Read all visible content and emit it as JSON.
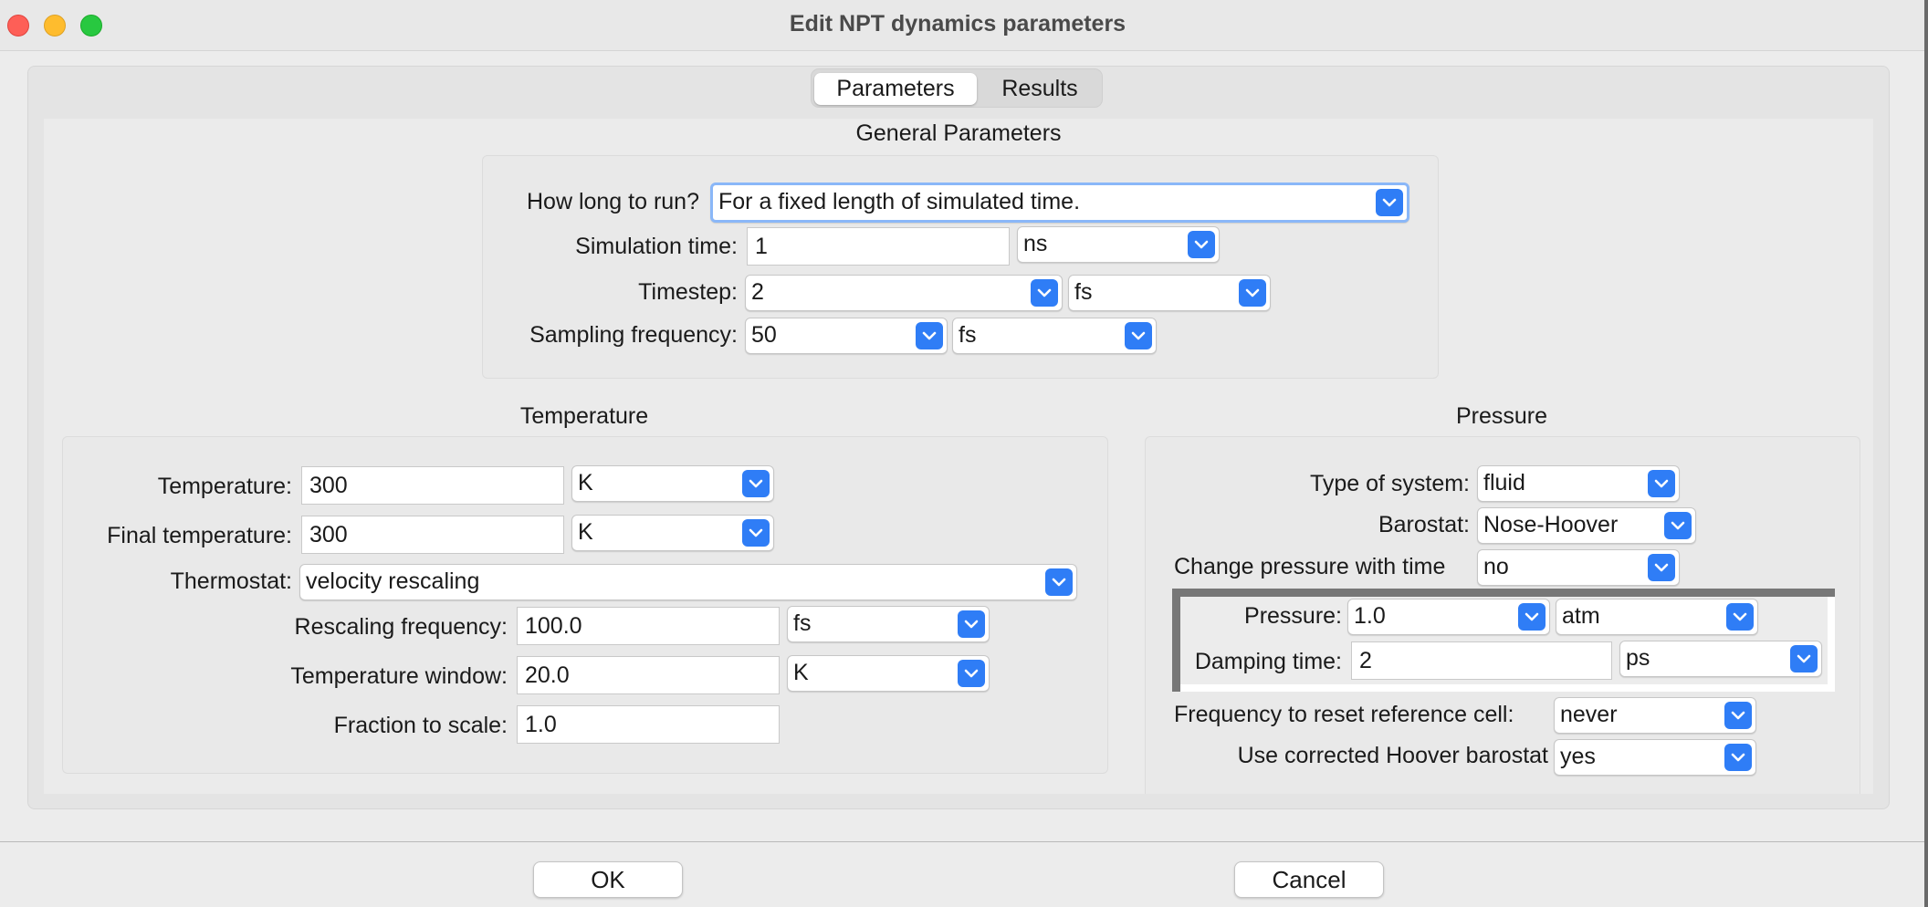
{
  "window": {
    "title": "Edit NPT dynamics parameters"
  },
  "tabs": [
    {
      "label": "Parameters",
      "selected": true
    },
    {
      "label": "Results",
      "selected": false
    }
  ],
  "general": {
    "title": "General Parameters",
    "how_long_label": "How long to run?",
    "how_long_value": "For a fixed length of simulated time.",
    "sim_time_label": "Simulation time:",
    "sim_time_value": "1",
    "sim_time_unit": "ns",
    "timestep_label": "Timestep:",
    "timestep_value": "2",
    "timestep_unit": "fs",
    "sampling_label": "Sampling frequency:",
    "sampling_value": "50",
    "sampling_unit": "fs"
  },
  "temperature": {
    "title": "Temperature",
    "temp_label": "Temperature:",
    "temp_value": "300",
    "temp_unit": "K",
    "final_label": "Final temperature:",
    "final_value": "300",
    "final_unit": "K",
    "thermostat_label": "Thermostat:",
    "thermostat_value": "velocity rescaling",
    "rescale_label": "Rescaling frequency:",
    "rescale_value": "100.0",
    "rescale_unit": "fs",
    "window_label": "Temperature window:",
    "window_value": "20.0",
    "window_unit": "K",
    "fraction_label": "Fraction to scale:",
    "fraction_value": "1.0"
  },
  "pressure": {
    "title": "Pressure",
    "system_label": "Type of system:",
    "system_value": "fluid",
    "barostat_label": "Barostat:",
    "barostat_value": "Nose-Hoover",
    "change_label": "Change pressure with time",
    "change_value": "no",
    "pressure_label": "Pressure:",
    "pressure_value": "1.0",
    "pressure_unit": "atm",
    "damping_label": "Damping time:",
    "damping_value": "2",
    "damping_unit": "ps",
    "reset_label": "Frequency to reset reference cell:",
    "reset_value": "never",
    "corrected_label": "Use corrected Hoover barostat",
    "corrected_value": "yes"
  },
  "buttons": {
    "ok": "OK",
    "cancel": "Cancel"
  },
  "colors": {
    "accent": "#2f7df6",
    "close": "#fe5f57",
    "minimize": "#febc2e",
    "zoom": "#28c840"
  }
}
